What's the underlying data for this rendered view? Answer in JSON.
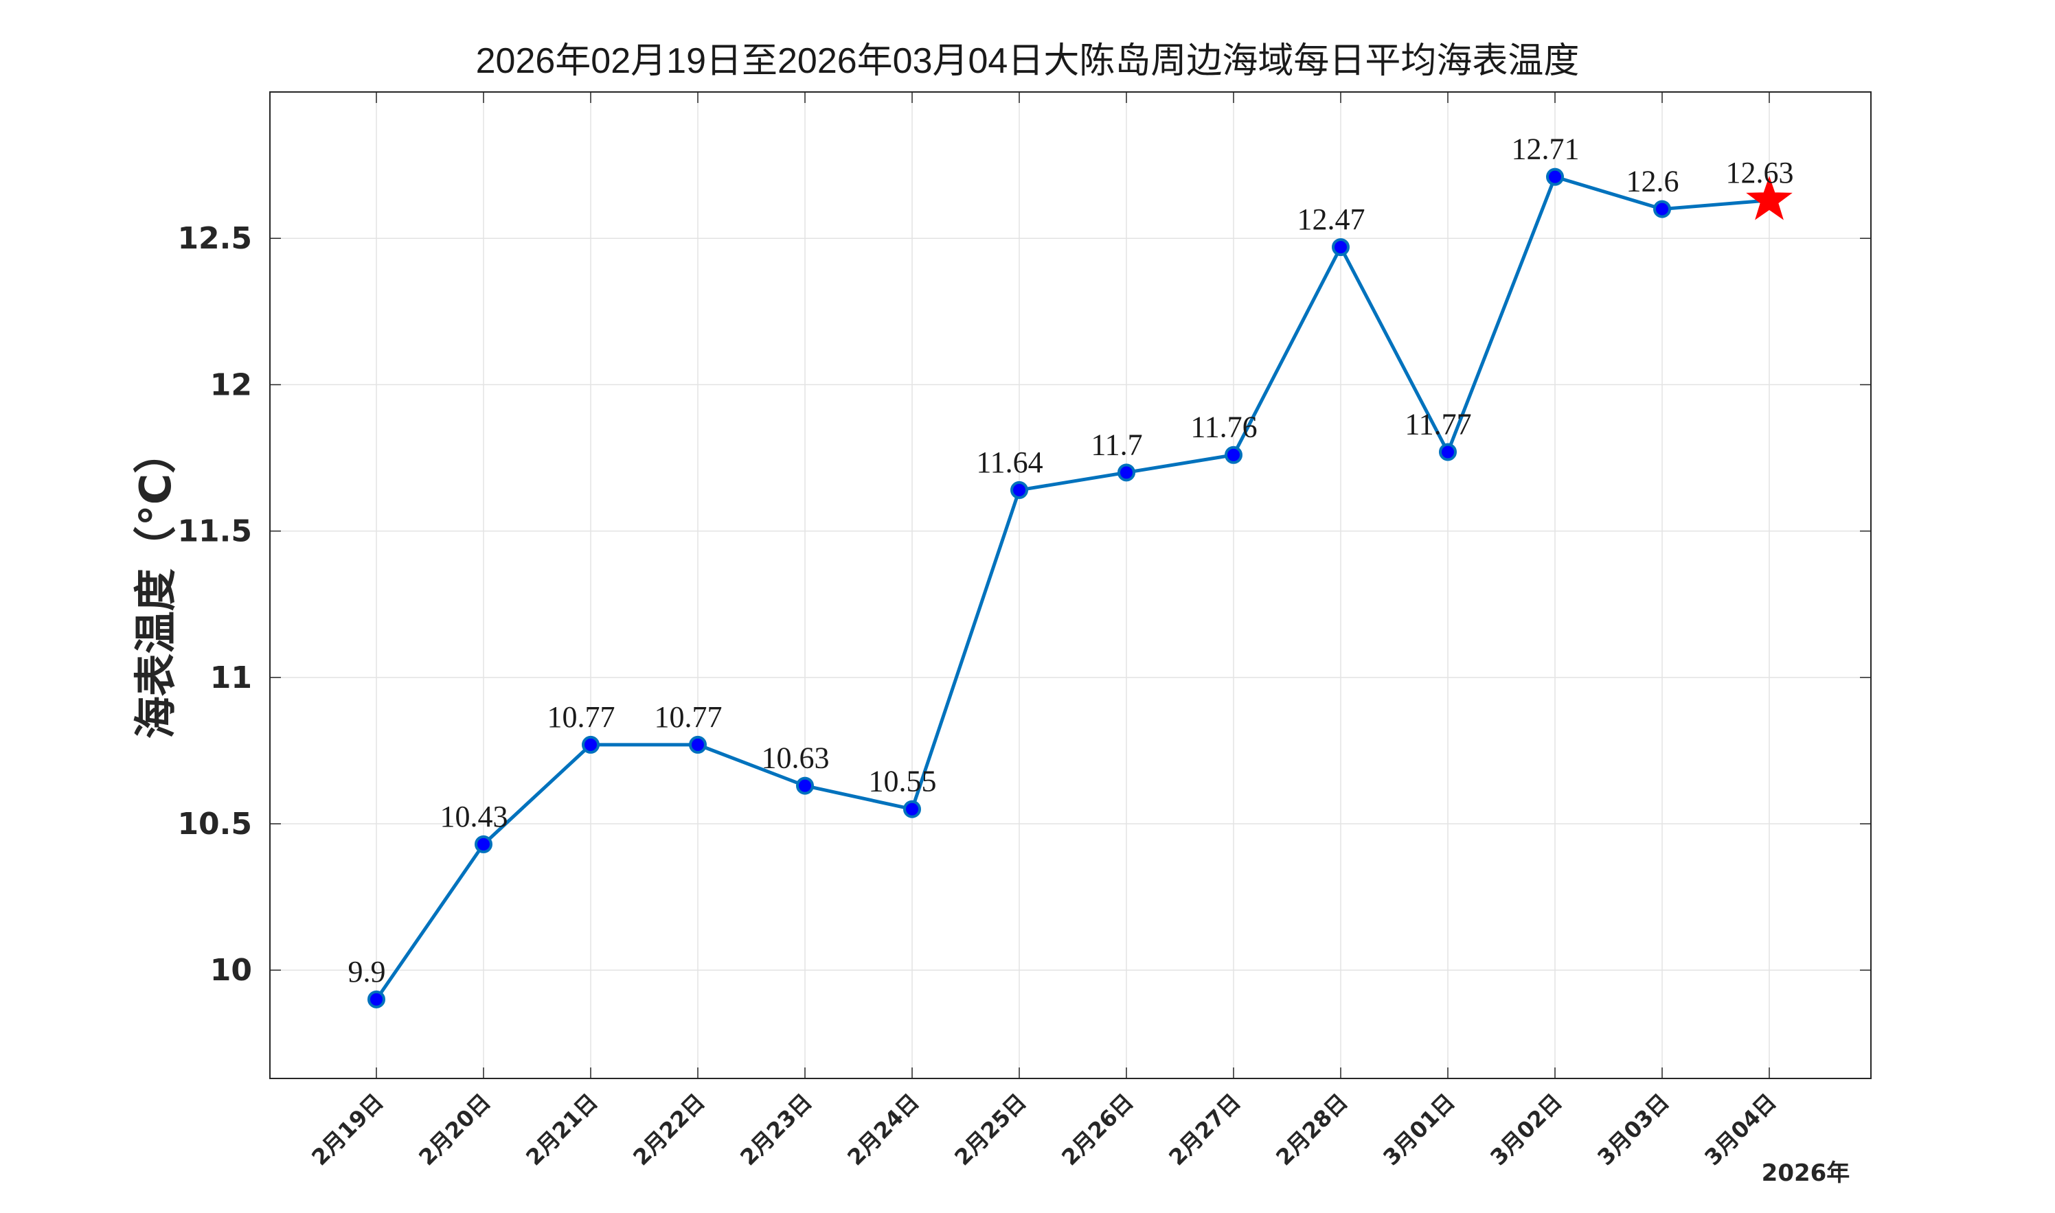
{
  "chart_data": {
    "type": "line",
    "title": "2026年02月19日至2026年03月04日大陈岛周边海域每日平均海表温度",
    "ylabel": "海表温度（°C）",
    "xlabel": "",
    "x_footer": "2026年",
    "categories": [
      "2月19日",
      "2月20日",
      "2月21日",
      "2月22日",
      "2月23日",
      "2月24日",
      "2月25日",
      "2月26日",
      "2月27日",
      "2月28日",
      "3月01日",
      "3月02日",
      "3月03日",
      "3月04日"
    ],
    "series": [
      {
        "values": [
          9.9,
          10.43,
          10.77,
          10.77,
          10.63,
          10.55,
          11.64,
          11.7,
          11.76,
          12.47,
          11.77,
          12.71,
          12.6,
          12.63
        ],
        "labels": [
          "9.9",
          "10.43",
          "10.77",
          "10.77",
          "10.63",
          "10.55",
          "11.64",
          "11.7",
          "11.76",
          "12.47",
          "11.77",
          "12.71",
          "12.6",
          "12.63"
        ],
        "color": "#0072BD",
        "marker_color": "#0000FF",
        "highlight_last": true,
        "highlight_color": "#FF0000",
        "highlight_marker": "star"
      }
    ],
    "ylim": [
      9.63,
      13.0
    ],
    "yticks": [
      10,
      10.5,
      11,
      11.5,
      12,
      12.5
    ],
    "ytick_labels": [
      "10",
      "10.5",
      "11",
      "11.5",
      "12",
      "12.5"
    ],
    "grid": true,
    "legend": "none"
  }
}
